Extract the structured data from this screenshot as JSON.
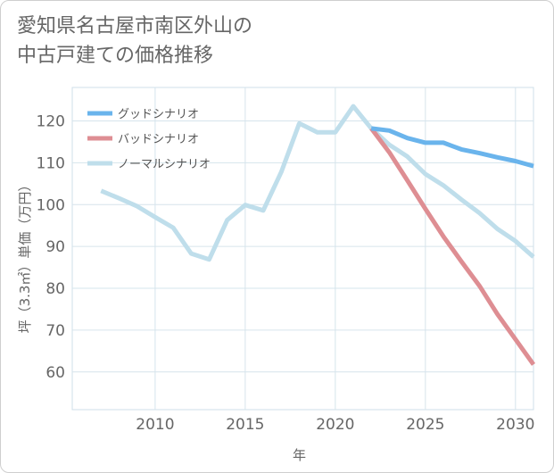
{
  "page": {
    "title_line1": "愛知県名古屋市南区外山の",
    "title_line2": "中古戸建ての価格推移"
  },
  "chart_data": {
    "type": "line",
    "title": "愛知県名古屋市南区外山の中古戸建ての価格推移",
    "xlabel": "年",
    "ylabel": "坪（3.3㎡）単価（万円）",
    "xlim": [
      2005.4,
      2031.0
    ],
    "ylim": [
      51,
      128
    ],
    "x_ticks": [
      2010,
      2015,
      2020,
      2025,
      2030
    ],
    "y_ticks": [
      60,
      70,
      80,
      90,
      100,
      110,
      120
    ],
    "grid": true,
    "legend_position": "top-left",
    "series": [
      {
        "name": "グッドシナリオ",
        "color": "#6ab4ec",
        "x": [
          2022,
          2023,
          2024,
          2025,
          2026,
          2027,
          2028,
          2029,
          2030,
          2031
        ],
        "y": [
          118.2,
          117.7,
          115.9,
          114.8,
          114.8,
          113.2,
          112.3,
          111.3,
          110.4,
          109.2
        ]
      },
      {
        "name": "バッドシナリオ",
        "color": "#de8e93",
        "x": [
          2022,
          2023,
          2024,
          2025,
          2026,
          2027,
          2028,
          2029,
          2030,
          2031
        ],
        "y": [
          118.2,
          112.5,
          105.8,
          99.0,
          92.4,
          86.4,
          80.6,
          73.8,
          67.8,
          61.8
        ]
      },
      {
        "name": "ノーマルシナリオ",
        "color": "#bfdeeb",
        "x": [
          2007,
          2008,
          2009,
          2010,
          2011,
          2012,
          2013,
          2014,
          2015,
          2016,
          2017,
          2018,
          2019,
          2020,
          2021,
          2022,
          2023,
          2024,
          2025,
          2026,
          2027,
          2028,
          2029,
          2030,
          2031
        ],
        "y": [
          103.3,
          101.5,
          99.6,
          97.0,
          94.5,
          88.3,
          86.9,
          96.3,
          99.9,
          98.6,
          107.8,
          119.4,
          117.3,
          117.3,
          123.5,
          118.2,
          114.3,
          111.5,
          107.3,
          104.6,
          101.2,
          98.0,
          94.2,
          91.3,
          87.5
        ]
      }
    ]
  }
}
